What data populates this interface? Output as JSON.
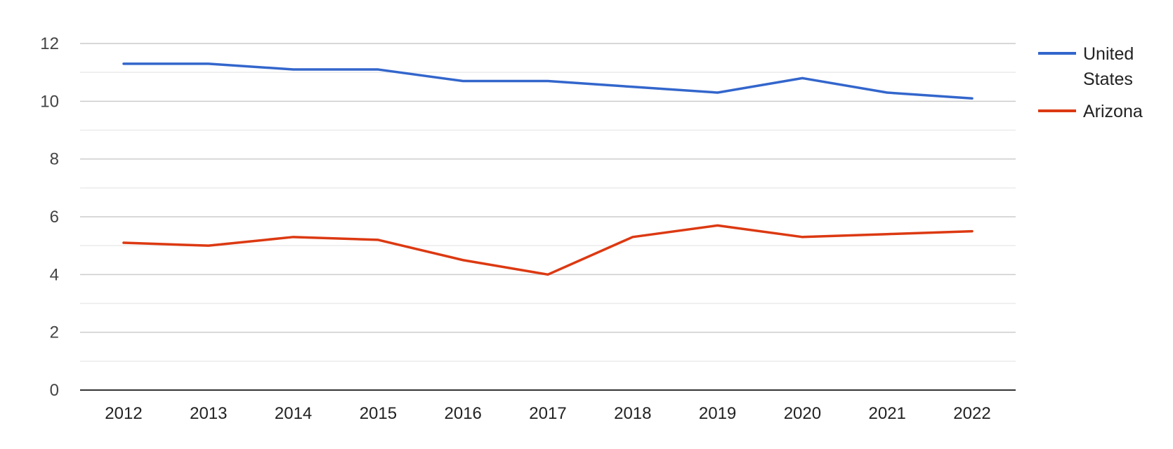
{
  "chart_data": {
    "type": "line",
    "title": "",
    "xlabel": "",
    "ylabel": "",
    "x": [
      "2012",
      "2013",
      "2014",
      "2015",
      "2016",
      "2017",
      "2018",
      "2019",
      "2020",
      "2021",
      "2022"
    ],
    "ylim": [
      0,
      12
    ],
    "y_ticks": [
      "0",
      "2",
      "4",
      "6",
      "8",
      "10",
      "12"
    ],
    "grid": true,
    "legend_position": "right",
    "series": [
      {
        "name": "United States",
        "legend_lines": [
          "United",
          "States"
        ],
        "color": "#3366cc",
        "values": [
          11.3,
          11.3,
          11.1,
          11.1,
          10.7,
          10.7,
          10.5,
          10.3,
          10.8,
          10.3,
          10.1
        ]
      },
      {
        "name": "Arizona",
        "legend_lines": [
          "Arizona"
        ],
        "color": "#dc3912",
        "values": [
          5.1,
          5.0,
          5.3,
          5.2,
          4.5,
          4.0,
          5.3,
          5.7,
          5.3,
          5.4,
          5.5
        ]
      }
    ]
  }
}
